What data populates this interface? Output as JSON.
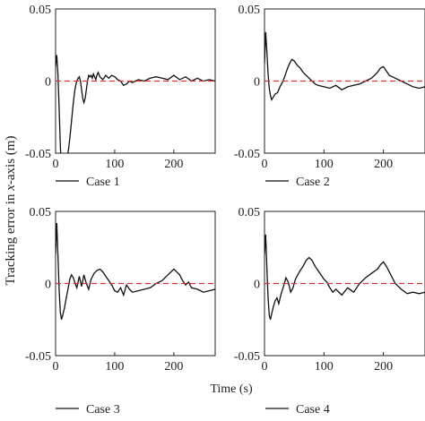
{
  "chart_data": [
    {
      "type": "line",
      "title": "",
      "xlabel": "",
      "ylabel": "",
      "xlim": [
        0,
        270
      ],
      "ylim": [
        -0.05,
        0.05
      ],
      "xticks": [
        "0",
        "100",
        "200"
      ],
      "yticks": [
        "0.05",
        "0",
        "-0.05"
      ],
      "legend": "bottom-left",
      "series": [
        {
          "name": "Case 1",
          "color": "#111111",
          "x": [
            0,
            2,
            4,
            6,
            8,
            10,
            12,
            14,
            16,
            18,
            20,
            22,
            24,
            26,
            28,
            30,
            32,
            34,
            36,
            38,
            40,
            42,
            44,
            46,
            48,
            50,
            52,
            54,
            56,
            58,
            60,
            62,
            64,
            66,
            68,
            70,
            72,
            75,
            80,
            85,
            90,
            95,
            100,
            105,
            110,
            115,
            120,
            125,
            130,
            140,
            150,
            160,
            170,
            180,
            190,
            200,
            210,
            220,
            230,
            240,
            250,
            260,
            270
          ],
          "y": [
            0.01,
            0.018,
            0.005,
            -0.02,
            -0.045,
            -0.06,
            -0.07,
            -0.066,
            -0.062,
            -0.057,
            -0.052,
            -0.047,
            -0.04,
            -0.032,
            -0.023,
            -0.015,
            -0.008,
            -0.003,
            0.0,
            0.002,
            0.003,
            0.0,
            -0.006,
            -0.012,
            -0.015,
            -0.012,
            -0.006,
            0.0,
            0.004,
            0.003,
            0.004,
            0.002,
            0.005,
            0.003,
            0.001,
            0.004,
            0.006,
            0.003,
            0.001,
            0.004,
            0.002,
            0.004,
            0.003,
            0.001,
            0.0,
            -0.003,
            -0.002,
            0.0,
            -0.001,
            0.001,
            0.0,
            0.002,
            0.003,
            0.002,
            0.001,
            0.004,
            0.001,
            0.003,
            0.0,
            0.002,
            0.0,
            0.001,
            0.0
          ]
        },
        {
          "name": "",
          "color": "#e03030",
          "dashed": true,
          "x": [
            0,
            270
          ],
          "y": [
            0,
            0
          ]
        }
      ]
    },
    {
      "type": "line",
      "title": "",
      "xlabel": "",
      "ylabel": "",
      "xlim": [
        0,
        270
      ],
      "ylim": [
        -0.05,
        0.05
      ],
      "xticks": [
        "0",
        "100",
        "200"
      ],
      "yticks": [
        "0.05",
        "0",
        "-0.05"
      ],
      "legend": "bottom-left",
      "series": [
        {
          "name": "Case 2",
          "color": "#111111",
          "x": [
            0,
            2,
            4,
            6,
            8,
            10,
            12,
            15,
            18,
            22,
            26,
            30,
            34,
            38,
            42,
            46,
            50,
            55,
            60,
            65,
            70,
            75,
            80,
            85,
            90,
            100,
            110,
            120,
            130,
            140,
            150,
            160,
            170,
            180,
            190,
            195,
            200,
            205,
            210,
            220,
            230,
            240,
            250,
            260,
            270
          ],
          "y": [
            0.012,
            0.034,
            0.02,
            0.005,
            -0.005,
            -0.01,
            -0.013,
            -0.011,
            -0.009,
            -0.008,
            -0.004,
            -0.001,
            0.003,
            0.008,
            0.012,
            0.015,
            0.014,
            0.011,
            0.009,
            0.006,
            0.004,
            0.002,
            0.0,
            -0.002,
            -0.003,
            -0.004,
            -0.005,
            -0.003,
            -0.006,
            -0.004,
            -0.003,
            -0.002,
            0.0,
            0.002,
            0.006,
            0.009,
            0.01,
            0.007,
            0.004,
            0.002,
            0.0,
            -0.002,
            -0.004,
            -0.005,
            -0.004
          ]
        },
        {
          "name": "",
          "color": "#e03030",
          "dashed": true,
          "x": [
            0,
            270
          ],
          "y": [
            0,
            0
          ]
        }
      ]
    },
    {
      "type": "line",
      "title": "",
      "xlabel": "",
      "ylabel": "",
      "xlim": [
        0,
        270
      ],
      "ylim": [
        -0.05,
        0.05
      ],
      "xticks": [
        "0",
        "100",
        "200"
      ],
      "yticks": [
        "0.05",
        "0",
        "-0.05"
      ],
      "legend": "bottom-left",
      "series": [
        {
          "name": "Case 3",
          "color": "#111111",
          "x": [
            0,
            2,
            4,
            6,
            8,
            10,
            12,
            15,
            18,
            21,
            24,
            27,
            30,
            33,
            36,
            40,
            44,
            48,
            52,
            56,
            60,
            65,
            70,
            75,
            80,
            85,
            90,
            95,
            100,
            105,
            110,
            115,
            120,
            125,
            130,
            140,
            150,
            160,
            170,
            180,
            190,
            200,
            205,
            210,
            215,
            220,
            225,
            230,
            240,
            250,
            260,
            270
          ],
          "y": [
            0.02,
            0.042,
            0.02,
            -0.005,
            -0.02,
            -0.025,
            -0.022,
            -0.017,
            -0.01,
            -0.004,
            0.003,
            0.006,
            0.004,
            0.0,
            -0.003,
            0.005,
            -0.002,
            0.006,
            0.0,
            -0.004,
            0.003,
            0.007,
            0.009,
            0.01,
            0.008,
            0.005,
            0.002,
            -0.001,
            -0.005,
            -0.006,
            -0.003,
            -0.008,
            -0.001,
            -0.004,
            -0.006,
            -0.005,
            -0.004,
            -0.003,
            0.0,
            0.002,
            0.006,
            0.01,
            0.008,
            0.006,
            0.002,
            -0.001,
            0.001,
            -0.003,
            -0.004,
            -0.006,
            -0.005,
            -0.004
          ]
        },
        {
          "name": "",
          "color": "#e03030",
          "dashed": true,
          "x": [
            0,
            270
          ],
          "y": [
            0,
            0
          ]
        }
      ]
    },
    {
      "type": "line",
      "title": "",
      "xlabel": "",
      "ylabel": "",
      "xlim": [
        0,
        270
      ],
      "ylim": [
        -0.05,
        0.05
      ],
      "xticks": [
        "0",
        "100",
        "200"
      ],
      "yticks": [
        "0.05",
        "0",
        "-0.05"
      ],
      "legend": "bottom-left",
      "series": [
        {
          "name": "Case 4",
          "color": "#111111",
          "x": [
            0,
            2,
            4,
            6,
            8,
            10,
            12,
            15,
            18,
            21,
            24,
            28,
            32,
            36,
            40,
            44,
            48,
            52,
            56,
            60,
            65,
            70,
            75,
            80,
            85,
            90,
            95,
            100,
            105,
            110,
            115,
            120,
            130,
            140,
            150,
            160,
            170,
            180,
            190,
            195,
            200,
            205,
            210,
            215,
            220,
            230,
            240,
            250,
            260,
            270
          ],
          "y": [
            0.02,
            0.034,
            0.01,
            -0.01,
            -0.022,
            -0.025,
            -0.021,
            -0.016,
            -0.012,
            -0.01,
            -0.014,
            -0.007,
            -0.002,
            0.004,
            0.001,
            -0.006,
            -0.003,
            0.003,
            0.006,
            0.009,
            0.012,
            0.016,
            0.018,
            0.016,
            0.012,
            0.009,
            0.006,
            0.003,
            0.001,
            -0.003,
            -0.006,
            -0.004,
            -0.008,
            -0.003,
            -0.006,
            0.0,
            0.004,
            0.007,
            0.01,
            0.013,
            0.015,
            0.012,
            0.008,
            0.004,
            0.0,
            -0.004,
            -0.007,
            -0.006,
            -0.007,
            -0.006
          ]
        },
        {
          "name": "",
          "color": "#e03030",
          "dashed": true,
          "x": [
            0,
            270
          ],
          "y": [
            0,
            0
          ]
        }
      ]
    }
  ],
  "figure": {
    "shared_ylabel_prefix": "Tracking error in ",
    "shared_ylabel_italic": "x",
    "shared_ylabel_suffix": "-axis (m)",
    "shared_xlabel": "Time (s)"
  }
}
